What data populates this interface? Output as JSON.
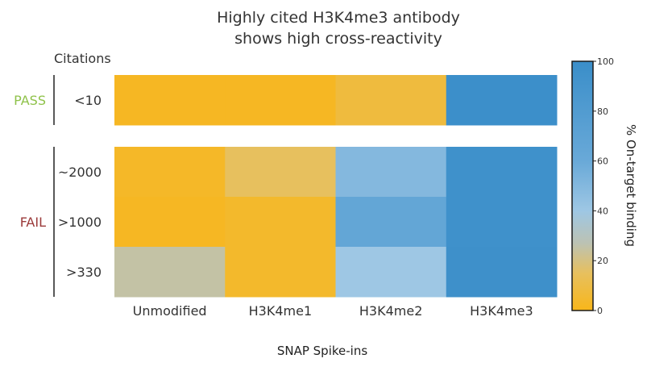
{
  "chart_data": {
    "type": "heatmap",
    "title_lines": [
      "Highly cited H3K4me3 antibody",
      "shows high cross-reactivity"
    ],
    "row_header": "Citations",
    "xlabel": "SNAP Spike-ins",
    "colorbar_label": "% On-target binding",
    "colorbar_range": [
      0,
      100
    ],
    "colorbar_ticks": [
      "0",
      "20",
      "40",
      "60",
      "80",
      "100"
    ],
    "columns": [
      "Unmodified",
      "H3K4me1",
      "H3K4me2",
      "H3K4me3"
    ],
    "groups": [
      {
        "name": "PASS",
        "color": "#8fc24a",
        "rows": [
          {
            "label": "<10",
            "values": [
              2,
              2,
              8,
              98
            ]
          }
        ]
      },
      {
        "name": "FAIL",
        "color": "#9b3a3a",
        "rows": [
          {
            "label": "~2000",
            "values": [
              3,
              15,
              50,
              96
            ]
          },
          {
            "label": ">1000",
            "values": [
              2,
              4,
              65,
              96
            ]
          },
          {
            "label": ">330",
            "values": [
              25,
              4,
              40,
              97
            ]
          }
        ]
      }
    ],
    "color_scale": [
      {
        "v": 0,
        "color": "#f8b61a"
      },
      {
        "v": 15,
        "color": "#e7c05e"
      },
      {
        "v": 27,
        "color": "#bcc2b3"
      },
      {
        "v": 40,
        "color": "#9ec7e4"
      },
      {
        "v": 60,
        "color": "#69a9d8"
      },
      {
        "v": 100,
        "color": "#3a8ec9"
      }
    ]
  }
}
